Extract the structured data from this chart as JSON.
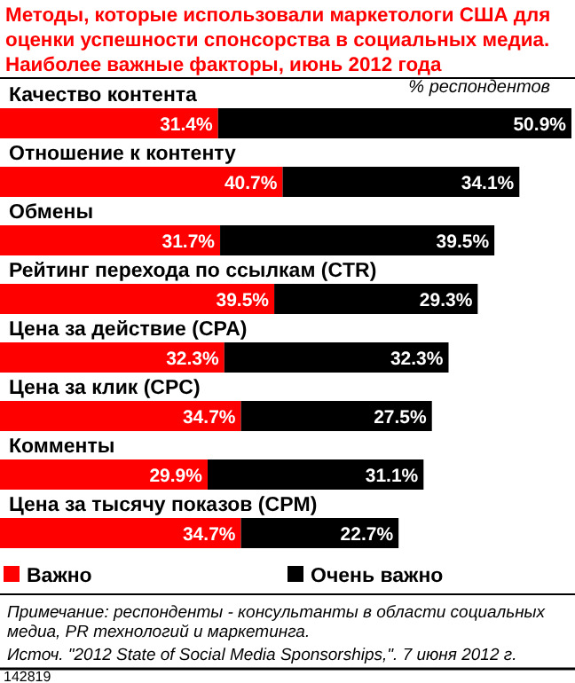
{
  "chart_data": {
    "type": "bar",
    "orientation": "horizontal",
    "stacked": true,
    "title": "Методы, которые использовали маркетологи США для оценки успешности спонсорства в социальных медиа. Наиболее важные факторы, июнь 2012 года",
    "subtitle": "% респондентов",
    "categories": [
      "Качество контента",
      "Отношение к контенту",
      "Обмены",
      "Рейтинг перехода по ссылкам (CTR)",
      "Цена за действие (CPA)",
      "Цена за клик (CPC)",
      "Комменты",
      "Цена за тысячу показов (CPM)"
    ],
    "series": [
      {
        "name": "Важно",
        "color": "#ff0000",
        "values": [
          31.4,
          40.7,
          31.7,
          39.5,
          32.3,
          34.7,
          29.9,
          34.7
        ],
        "value_labels": [
          "31.4%",
          "40.7%",
          "31.7%",
          "39.5%",
          "32.3%",
          "34.7%",
          "29.9%",
          "34.7%"
        ]
      },
      {
        "name": "Очень важно",
        "color": "#000000",
        "values": [
          50.9,
          34.1,
          39.5,
          29.3,
          32.3,
          27.5,
          31.1,
          22.7
        ],
        "value_labels": [
          "50.9%",
          "34.1%",
          "39.5%",
          "29.3%",
          "32.3%",
          "27.5%",
          "31.1%",
          "22.7%"
        ]
      }
    ],
    "legend": "bottom",
    "annotations": [
      "Примечание: респонденты - консультанты в области социальных медиа, PR технологий и маркетинга.",
      "Источ. \"2012 State of Social Media Sponsorships,\". 7 июня 2012 г.",
      "142819"
    ]
  }
}
